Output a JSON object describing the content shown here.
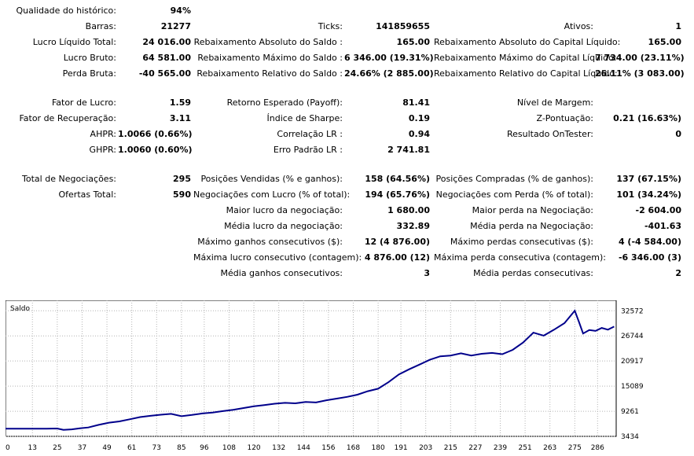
{
  "report": {
    "quality_label": "Qualidade do histórico:",
    "quality_value": "94%",
    "bars_label": "Barras:",
    "bars_value": "21277",
    "ticks_label": "Ticks:",
    "ticks_value": "141859655",
    "assets_label": "Ativos:",
    "assets_value": "1",
    "net_profit_label": "Lucro Líquido Total:",
    "net_profit_value": "24 016.00",
    "abs_dd_balance_label": "Rebaixamento Absoluto do Saldo :",
    "abs_dd_balance_value": "165.00",
    "abs_dd_equity_label": "Rebaixamento Absoluto do Capital Líquido:",
    "abs_dd_equity_value": "165.00",
    "gross_profit_label": "Lucro Bruto:",
    "gross_profit_value": "64 581.00",
    "max_dd_balance_label": "Rebaixamento Máximo do Saldo :",
    "max_dd_balance_value": "6 346.00 (19.31%)",
    "max_dd_equity_label": "Rebaixamento Máximo do Capital Líquido:",
    "max_dd_equity_value": "7 734.00 (23.11%)",
    "gross_loss_label": "Perda Bruta:",
    "gross_loss_value": "-40 565.00",
    "rel_dd_balance_label": "Rebaixamento Relativo do Saldo :",
    "rel_dd_balance_value": "24.66% (2 885.00)",
    "rel_dd_equity_label": "Rebaixamento Relativo do Capital Líquido:",
    "rel_dd_equity_value": "26.11% (3 083.00)",
    "profit_factor_label": "Fator de Lucro:",
    "profit_factor_value": "1.59",
    "expected_payoff_label": "Retorno Esperado (Payoff):",
    "expected_payoff_value": "81.41",
    "margin_level_label": "Nível de Margem:",
    "margin_level_value": "",
    "recovery_factor_label": "Fator de Recuperação:",
    "recovery_factor_value": "3.11",
    "sharpe_label": "Índice de Sharpe:",
    "sharpe_value": "0.19",
    "z_score_label": "Z-Pontuação:",
    "z_score_value": "0.21 (16.63%)",
    "ahpr_label": "AHPR:",
    "ahpr_value": "1.0066 (0.66%)",
    "lr_corr_label": "Correlação LR :",
    "lr_corr_value": "0.94",
    "ontester_label": "Resultado OnTester:",
    "ontester_value": "0",
    "ghpr_label": "GHPR:",
    "ghpr_value": "1.0060 (0.60%)",
    "lr_err_label": "Erro Padrão LR :",
    "lr_err_value": "2 741.81",
    "total_trades_label": "Total de Negociações:",
    "total_trades_value": "295",
    "short_pos_label": "Posições Vendidas (% e ganhos):",
    "short_pos_value": "158 (64.56%)",
    "long_pos_label": "Posições Compradas (% de ganhos):",
    "long_pos_value": "137 (67.15%)",
    "total_deals_label": "Ofertas Total:",
    "total_deals_value": "590",
    "profit_trades_label": "Negociações com Lucro (% of total):",
    "profit_trades_value": "194 (65.76%)",
    "loss_trades_label": "Negociações com Perda (% of total):",
    "loss_trades_value": "101 (34.24%)",
    "largest_profit_label": "Maior lucro da negociação:",
    "largest_profit_value": "1 680.00",
    "largest_loss_label": "Maior perda na Negociação:",
    "largest_loss_value": "-2 604.00",
    "avg_profit_label": "Média lucro da negociação:",
    "avg_profit_value": "332.89",
    "avg_loss_label": "Média perda na Negociação:",
    "avg_loss_value": "-401.63",
    "max_cons_wins_label": "Máximo ganhos consecutivos ($):",
    "max_cons_wins_value": "12 (4 876.00)",
    "max_cons_losses_label": "Máximo perdas consecutivas ($):",
    "max_cons_losses_value": "4 (-4 584.00)",
    "max_cons_profit_label": "Máxima lucro consecutivo (contagem):",
    "max_cons_profit_value": "4 876.00 (12)",
    "max_cons_loss_label": "Máxima perda consecutiva (contagem):",
    "max_cons_loss_value": "-6 346.00 (3)",
    "avg_cons_wins_label": "Média ganhos consecutivos:",
    "avg_cons_wins_value": "3",
    "avg_cons_losses_label": "Média perdas consecutivas:",
    "avg_cons_losses_value": "2"
  },
  "chart_data": {
    "type": "line",
    "title": "Saldo",
    "line_color": "#00008b",
    "grid": true,
    "xlim": [
      0,
      295
    ],
    "ylim": [
      3434,
      35000
    ],
    "x_ticks": [
      "0",
      "13",
      "25",
      "37",
      "49",
      "61",
      "73",
      "85",
      "96",
      "108",
      "120",
      "132",
      "144",
      "156",
      "168",
      "180",
      "191",
      "203",
      "215",
      "227",
      "239",
      "251",
      "263",
      "275",
      "286"
    ],
    "y_ticks": [
      "32572",
      "26744",
      "20917",
      "15089",
      "9261",
      "3434"
    ],
    "series": [
      {
        "x": [
          0,
          10,
          20,
          25,
          28,
          32,
          36,
          40,
          45,
          50,
          55,
          60,
          65,
          70,
          75,
          80,
          85,
          90,
          95,
          100,
          105,
          110,
          115,
          120,
          125,
          130,
          135,
          140,
          145,
          150,
          155,
          160,
          165,
          170,
          175,
          180,
          185,
          190,
          195,
          200,
          205,
          210,
          215,
          220,
          225,
          230,
          235,
          240,
          245,
          250,
          255,
          260,
          265,
          270,
          275,
          277,
          279,
          282,
          285,
          288,
          291,
          294
        ],
        "y": [
          5200,
          5200,
          5200,
          5250,
          4950,
          5050,
          5300,
          5500,
          6100,
          6600,
          6900,
          7400,
          7900,
          8200,
          8450,
          8650,
          8100,
          8400,
          8750,
          8950,
          9300,
          9600,
          10000,
          10400,
          10700,
          11000,
          11200,
          11100,
          11400,
          11300,
          11800,
          12200,
          12600,
          13100,
          13900,
          14500,
          16000,
          17800,
          19000,
          20100,
          21200,
          22000,
          22200,
          22700,
          22200,
          22600,
          22800,
          22500,
          23500,
          25200,
          27500,
          26800,
          28200,
          29700,
          32600,
          30000,
          27300,
          28100,
          27900,
          28600,
          28200,
          28900
        ]
      }
    ]
  }
}
